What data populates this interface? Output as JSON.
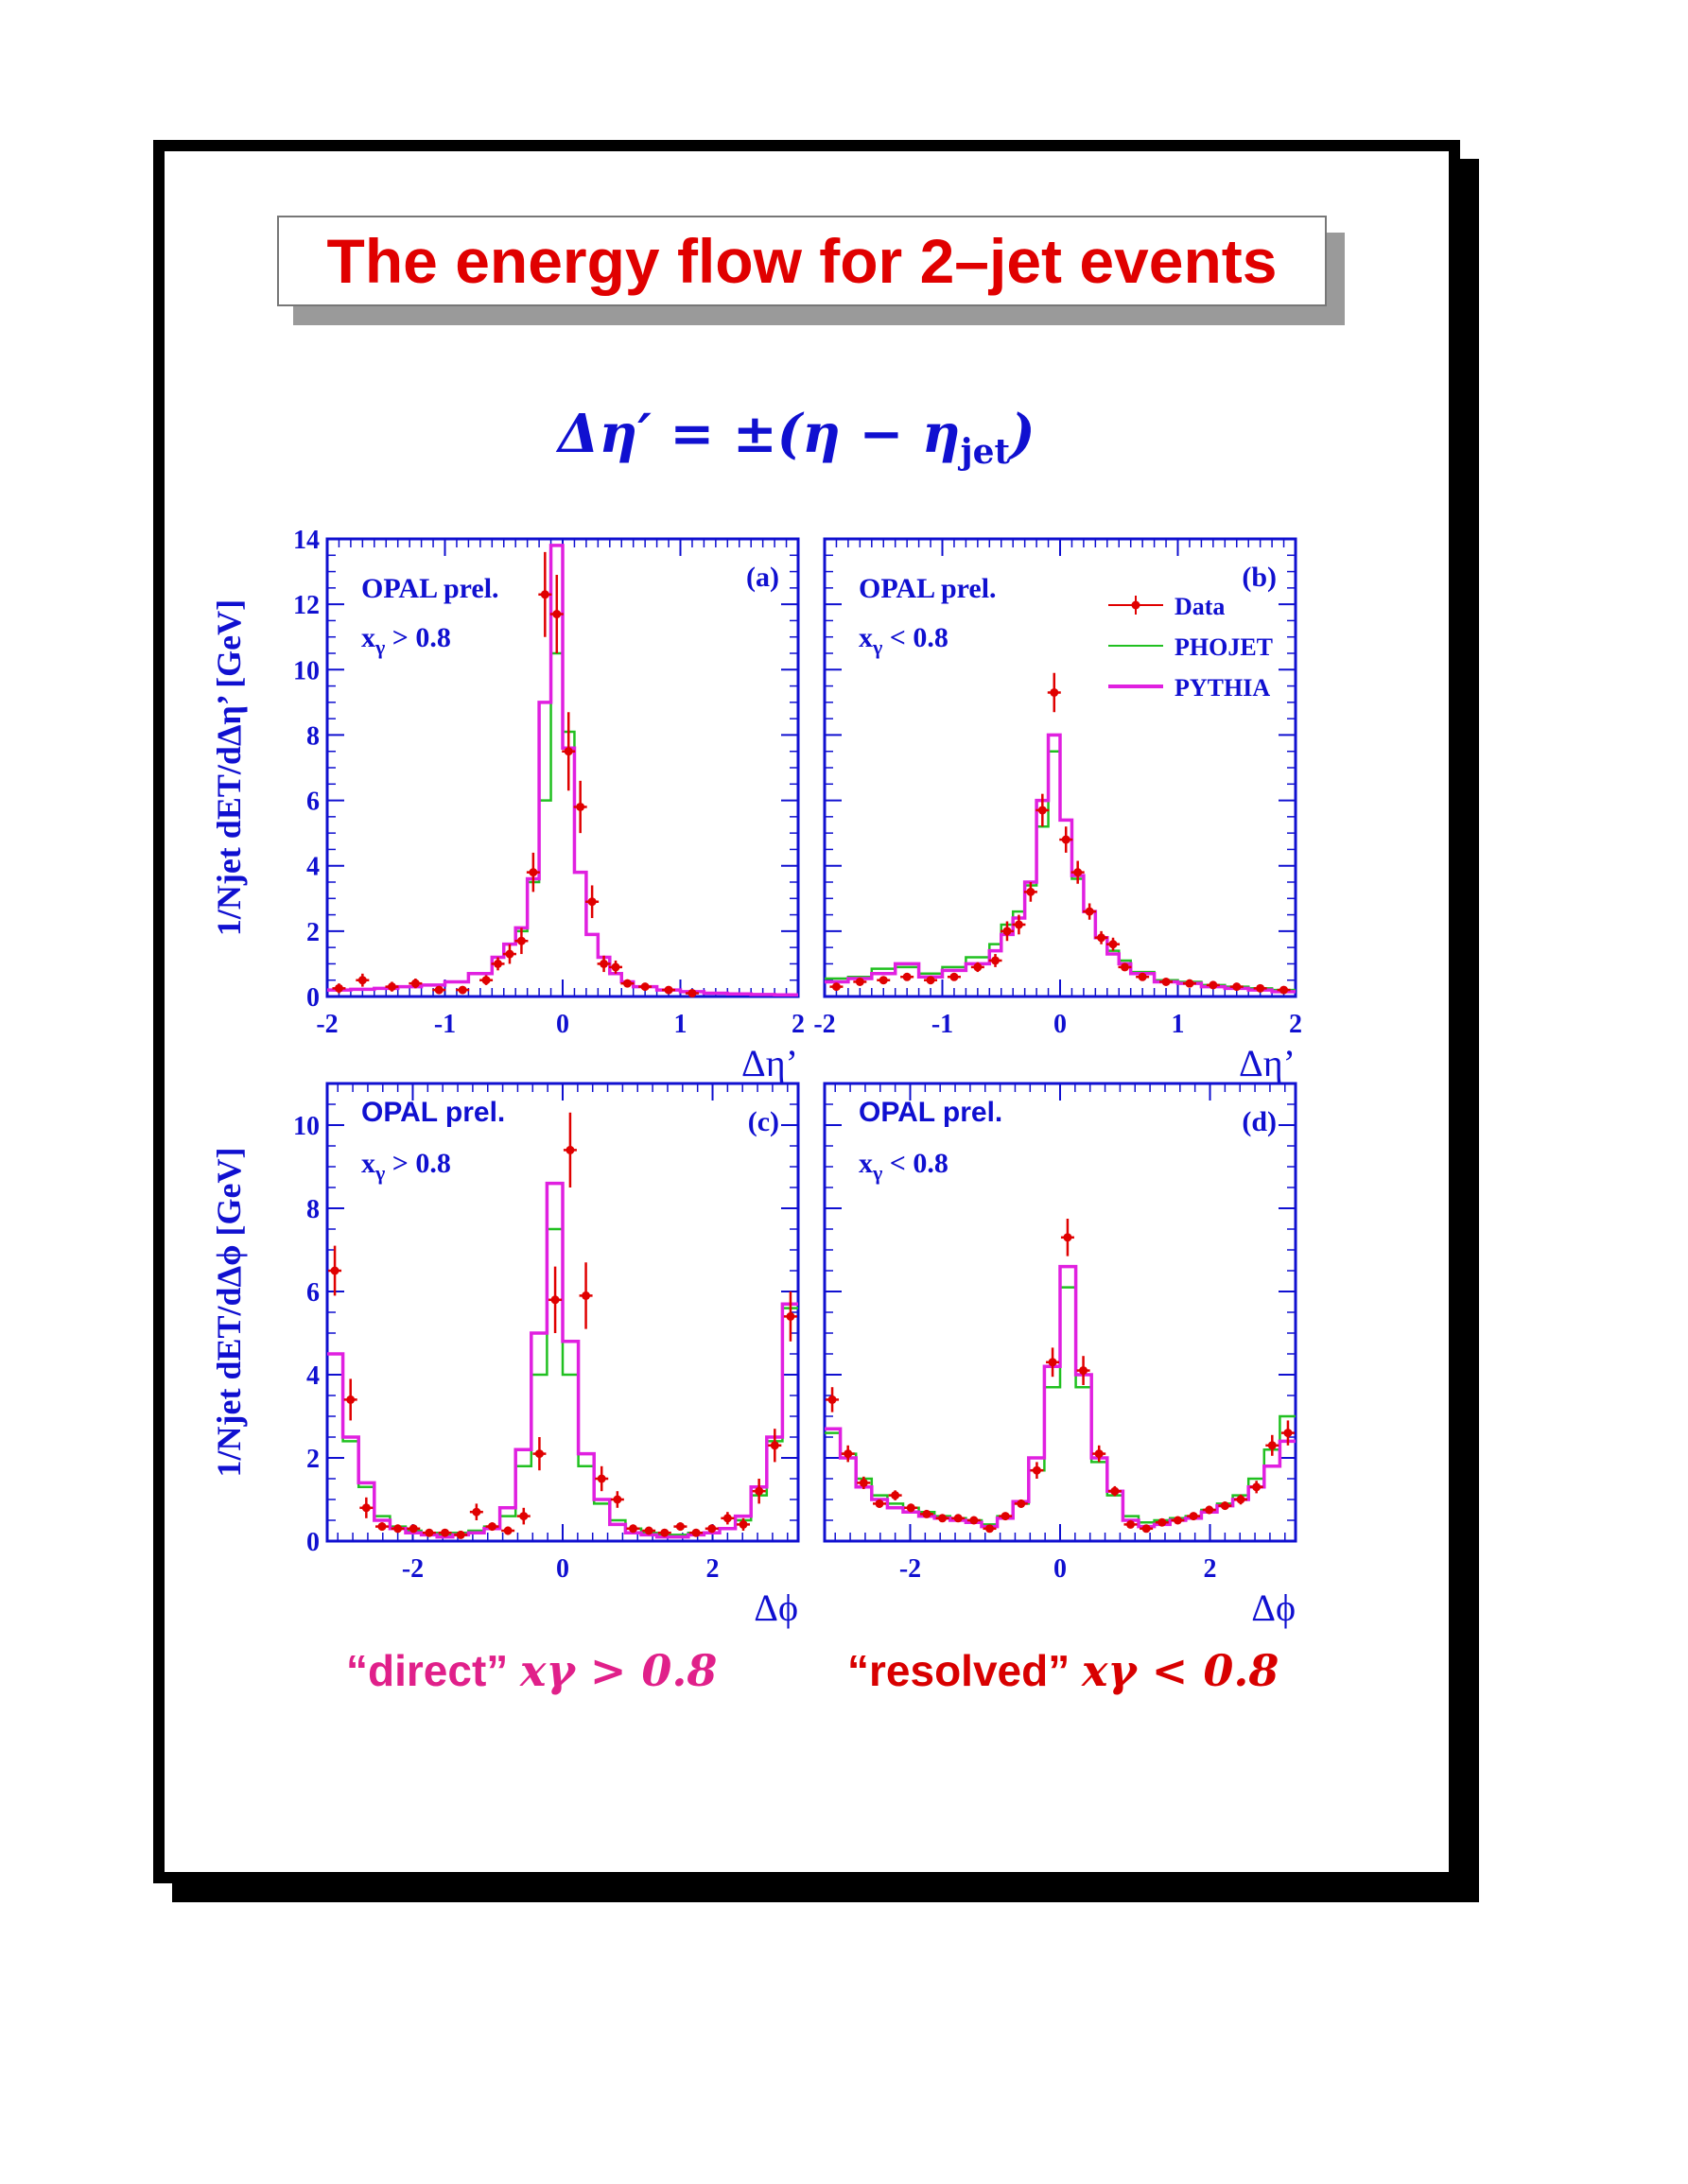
{
  "slide": {
    "title": "The energy flow for 2–jet events",
    "formula": {
      "prefix": "Δη′ = ±(η − η",
      "subscript": "jet",
      "suffix": ")"
    },
    "captions": {
      "direct": {
        "label": "“direct”",
        "math": "xγ > 0.8"
      },
      "resolved": {
        "label": "“resolved”",
        "math": "xγ < 0.8"
      }
    }
  },
  "colors": {
    "title": "#e00000",
    "axis": "#1010d0",
    "data": "#e00000",
    "phojet": "#20c020",
    "pythia": "#e020e0",
    "direct_caption": "#e0208a",
    "resolved_caption": "#d80000"
  },
  "legend": {
    "entries": [
      {
        "name": "Data",
        "style": "marker"
      },
      {
        "name": "PHOJET",
        "style": "line-thin"
      },
      {
        "name": "PYTHIA",
        "style": "line-thick"
      }
    ],
    "placement": "panel-b top-right"
  },
  "chart_data": [
    {
      "panel": "(a)",
      "type": "histogram",
      "label": "OPAL prel.",
      "cut": "xγ > 0.8",
      "xlabel": "Δη’",
      "ylabel": "1/Njet dET/dΔη’ [GeV]",
      "xlim": [
        -2,
        2
      ],
      "ylim": [
        0,
        14
      ],
      "xticks": [
        -2,
        -1,
        0,
        1,
        2
      ],
      "yticks": [
        0,
        2,
        4,
        6,
        8,
        10,
        12,
        14
      ],
      "bin_edges": [
        -2.0,
        -1.8,
        -1.6,
        -1.4,
        -1.2,
        -1.0,
        -0.8,
        -0.6,
        -0.5,
        -0.4,
        -0.3,
        -0.2,
        -0.1,
        0.0,
        0.1,
        0.2,
        0.3,
        0.4,
        0.5,
        0.6,
        0.8,
        1.0,
        1.2,
        1.4,
        1.6,
        1.8,
        2.0
      ],
      "series": [
        {
          "name": "PHOJET",
          "values": [
            0.2,
            0.22,
            0.25,
            0.3,
            0.35,
            0.45,
            0.7,
            1.2,
            1.6,
            2.0,
            3.5,
            6.0,
            10.5,
            8.1,
            3.8,
            1.9,
            1.2,
            0.7,
            0.45,
            0.3,
            0.2,
            0.15,
            0.1,
            0.08,
            0.06,
            0.05
          ]
        },
        {
          "name": "PYTHIA",
          "values": [
            0.2,
            0.22,
            0.25,
            0.3,
            0.35,
            0.45,
            0.7,
            1.2,
            1.6,
            2.1,
            3.6,
            9.0,
            13.8,
            7.6,
            3.8,
            1.9,
            1.2,
            0.7,
            0.45,
            0.3,
            0.2,
            0.15,
            0.1,
            0.08,
            0.06,
            0.05
          ]
        }
      ],
      "data": {
        "x": [
          -1.9,
          -1.7,
          -1.45,
          -1.25,
          -1.05,
          -0.85,
          -0.65,
          -0.55,
          -0.45,
          -0.35,
          -0.25,
          -0.15,
          -0.05,
          0.05,
          0.15,
          0.25,
          0.35,
          0.45,
          0.55,
          0.7,
          0.9,
          1.1
        ],
        "y": [
          0.25,
          0.5,
          0.3,
          0.4,
          0.2,
          0.2,
          0.5,
          1.0,
          1.3,
          1.7,
          3.8,
          12.3,
          11.7,
          7.5,
          5.8,
          2.9,
          1.0,
          0.9,
          0.4,
          0.3,
          0.2,
          0.1
        ],
        "err": [
          0.15,
          0.2,
          0.15,
          0.15,
          0.1,
          0.1,
          0.15,
          0.2,
          0.3,
          0.4,
          0.6,
          1.3,
          1.2,
          1.2,
          0.8,
          0.5,
          0.25,
          0.2,
          0.12,
          0.1,
          0.08,
          0.05
        ]
      }
    },
    {
      "panel": "(b)",
      "type": "histogram",
      "label": "OPAL prel.",
      "cut": "xγ < 0.8",
      "xlabel": "Δη’",
      "xlim": [
        -2,
        2
      ],
      "ylim": [
        0,
        14
      ],
      "xticks": [
        -2,
        -1,
        0,
        1,
        2
      ],
      "bin_edges": [
        -2.0,
        -1.8,
        -1.6,
        -1.4,
        -1.2,
        -1.0,
        -0.8,
        -0.6,
        -0.5,
        -0.4,
        -0.3,
        -0.2,
        -0.1,
        0.0,
        0.1,
        0.2,
        0.3,
        0.4,
        0.5,
        0.6,
        0.8,
        1.0,
        1.2,
        1.4,
        1.6,
        1.8,
        2.0
      ],
      "series": [
        {
          "name": "PHOJET",
          "values": [
            0.55,
            0.6,
            0.85,
            0.9,
            0.7,
            0.9,
            1.2,
            1.6,
            2.2,
            2.6,
            3.4,
            5.2,
            7.5,
            5.4,
            3.6,
            2.6,
            1.8,
            1.4,
            1.1,
            0.75,
            0.5,
            0.45,
            0.35,
            0.3,
            0.25,
            0.2
          ]
        },
        {
          "name": "PYTHIA",
          "values": [
            0.45,
            0.55,
            0.7,
            1.0,
            0.6,
            0.8,
            1.0,
            1.4,
            1.9,
            2.4,
            3.5,
            6.0,
            8.0,
            5.4,
            3.7,
            2.6,
            1.8,
            1.3,
            1.0,
            0.7,
            0.45,
            0.4,
            0.3,
            0.25,
            0.2,
            0.15
          ]
        }
      ],
      "data": {
        "x": [
          -1.9,
          -1.7,
          -1.5,
          -1.3,
          -1.1,
          -0.9,
          -0.7,
          -0.55,
          -0.45,
          -0.35,
          -0.25,
          -0.15,
          -0.05,
          0.05,
          0.15,
          0.25,
          0.35,
          0.45,
          0.55,
          0.7,
          0.9,
          1.1,
          1.3,
          1.5,
          1.7,
          1.9
        ],
        "y": [
          0.3,
          0.45,
          0.5,
          0.6,
          0.5,
          0.6,
          0.9,
          1.1,
          2.0,
          2.2,
          3.2,
          5.7,
          9.3,
          4.8,
          3.8,
          2.6,
          1.8,
          1.6,
          0.9,
          0.6,
          0.45,
          0.4,
          0.35,
          0.3,
          0.25,
          0.2
        ],
        "err": [
          0.1,
          0.1,
          0.1,
          0.1,
          0.1,
          0.1,
          0.15,
          0.2,
          0.3,
          0.3,
          0.3,
          0.5,
          0.6,
          0.4,
          0.35,
          0.25,
          0.2,
          0.2,
          0.12,
          0.1,
          0.08,
          0.08,
          0.06,
          0.06,
          0.05,
          0.05
        ]
      }
    },
    {
      "panel": "(c)",
      "type": "histogram",
      "label": "OPAL prel.",
      "cut": "xγ > 0.8",
      "xlabel": "Δϕ",
      "ylabel": "1/Njet dET/dΔϕ [GeV]",
      "xlim": [
        -3.14159,
        3.14159
      ],
      "ylim": [
        0,
        11
      ],
      "xticks": [
        -2,
        0,
        2
      ],
      "yticks": [
        0,
        2,
        4,
        6,
        8,
        10
      ],
      "bin_edges": [
        -3.14159,
        -2.9322,
        -2.7227,
        -2.5133,
        -2.3038,
        -2.0944,
        -1.885,
        -1.6755,
        -1.4661,
        -1.2566,
        -1.0472,
        -0.8378,
        -0.6283,
        -0.4189,
        -0.2094,
        0.0,
        0.2094,
        0.4189,
        0.6283,
        0.8378,
        1.0472,
        1.2566,
        1.4661,
        1.6755,
        1.885,
        2.0944,
        2.3038,
        2.5133,
        2.7227,
        2.9322,
        3.14159
      ],
      "series": [
        {
          "name": "PHOJET",
          "values": [
            4.5,
            2.4,
            1.3,
            0.6,
            0.35,
            0.25,
            0.2,
            0.15,
            0.2,
            0.25,
            0.35,
            0.6,
            1.8,
            4.0,
            7.5,
            4.0,
            1.8,
            0.9,
            0.5,
            0.3,
            0.2,
            0.15,
            0.15,
            0.2,
            0.2,
            0.3,
            0.5,
            1.1,
            2.4,
            5.6
          ]
        },
        {
          "name": "PYTHIA",
          "values": [
            4.5,
            2.5,
            1.4,
            0.5,
            0.3,
            0.2,
            0.15,
            0.1,
            0.15,
            0.2,
            0.3,
            0.8,
            2.2,
            5.0,
            8.6,
            4.8,
            2.1,
            1.0,
            0.4,
            0.2,
            0.15,
            0.1,
            0.1,
            0.15,
            0.2,
            0.3,
            0.6,
            1.3,
            2.5,
            5.7
          ]
        }
      ],
      "data": {
        "x": [
          -3.04,
          -2.83,
          -2.62,
          -2.41,
          -2.2,
          -1.99,
          -1.78,
          -1.57,
          -1.36,
          -1.15,
          -0.94,
          -0.73,
          -0.52,
          -0.31,
          -0.1,
          0.1,
          0.31,
          0.52,
          0.73,
          0.94,
          1.15,
          1.36,
          1.57,
          1.78,
          1.99,
          2.2,
          2.41,
          2.62,
          2.83,
          3.04
        ],
        "y": [
          6.5,
          3.4,
          0.8,
          0.35,
          0.3,
          0.3,
          0.2,
          0.2,
          0.15,
          0.7,
          0.35,
          0.25,
          0.6,
          2.1,
          5.8,
          9.4,
          5.9,
          1.5,
          1.0,
          0.3,
          0.25,
          0.2,
          0.35,
          0.2,
          0.3,
          0.55,
          0.4,
          1.2,
          2.3,
          5.4
        ],
        "err": [
          0.6,
          0.5,
          0.25,
          0.1,
          0.1,
          0.1,
          0.08,
          0.08,
          0.08,
          0.2,
          0.1,
          0.1,
          0.2,
          0.4,
          0.8,
          0.9,
          0.8,
          0.3,
          0.2,
          0.1,
          0.08,
          0.08,
          0.1,
          0.08,
          0.1,
          0.15,
          0.15,
          0.3,
          0.4,
          0.6
        ]
      }
    },
    {
      "panel": "(d)",
      "type": "histogram",
      "label": "OPAL prel.",
      "cut": "xγ < 0.8",
      "xlabel": "Δϕ",
      "xlim": [
        -3.14159,
        3.14159
      ],
      "ylim": [
        0,
        11
      ],
      "xticks": [
        -2,
        0,
        2
      ],
      "bin_edges": [
        -3.14159,
        -2.9322,
        -2.7227,
        -2.5133,
        -2.3038,
        -2.0944,
        -1.885,
        -1.6755,
        -1.4661,
        -1.2566,
        -1.0472,
        -0.8378,
        -0.6283,
        -0.4189,
        -0.2094,
        0.0,
        0.2094,
        0.4189,
        0.6283,
        0.8378,
        1.0472,
        1.2566,
        1.4661,
        1.6755,
        1.885,
        2.0944,
        2.3038,
        2.5133,
        2.7227,
        2.9322,
        3.14159
      ],
      "series": [
        {
          "name": "PHOJET",
          "values": [
            2.6,
            2.1,
            1.5,
            1.1,
            0.9,
            0.8,
            0.7,
            0.6,
            0.55,
            0.5,
            0.4,
            0.6,
            0.9,
            1.7,
            3.7,
            6.1,
            3.7,
            1.9,
            1.1,
            0.6,
            0.45,
            0.5,
            0.55,
            0.6,
            0.75,
            0.9,
            1.1,
            1.5,
            2.2,
            3.0
          ]
        },
        {
          "name": "PYTHIA",
          "values": [
            2.7,
            2.0,
            1.3,
            1.0,
            0.8,
            0.7,
            0.6,
            0.55,
            0.5,
            0.45,
            0.35,
            0.55,
            0.95,
            2.0,
            4.2,
            6.6,
            4.0,
            2.0,
            1.2,
            0.5,
            0.35,
            0.4,
            0.5,
            0.55,
            0.7,
            0.85,
            1.0,
            1.3,
            1.8,
            2.4
          ]
        }
      ],
      "data": {
        "x": [
          -3.04,
          -2.83,
          -2.62,
          -2.41,
          -2.2,
          -1.99,
          -1.78,
          -1.57,
          -1.36,
          -1.15,
          -0.94,
          -0.73,
          -0.52,
          -0.31,
          -0.1,
          0.1,
          0.31,
          0.52,
          0.73,
          0.94,
          1.15,
          1.36,
          1.57,
          1.78,
          1.99,
          2.2,
          2.41,
          2.62,
          2.83,
          3.04
        ],
        "y": [
          3.4,
          2.1,
          1.4,
          0.9,
          1.1,
          0.8,
          0.65,
          0.55,
          0.55,
          0.5,
          0.3,
          0.6,
          0.9,
          1.7,
          4.3,
          7.3,
          4.1,
          2.1,
          1.2,
          0.4,
          0.3,
          0.45,
          0.5,
          0.6,
          0.75,
          0.85,
          1.0,
          1.3,
          2.3,
          2.6
        ],
        "err": [
          0.3,
          0.2,
          0.15,
          0.1,
          0.12,
          0.1,
          0.08,
          0.08,
          0.08,
          0.08,
          0.06,
          0.08,
          0.1,
          0.2,
          0.35,
          0.45,
          0.35,
          0.2,
          0.12,
          0.08,
          0.06,
          0.08,
          0.08,
          0.08,
          0.1,
          0.1,
          0.12,
          0.15,
          0.25,
          0.3
        ]
      }
    }
  ]
}
